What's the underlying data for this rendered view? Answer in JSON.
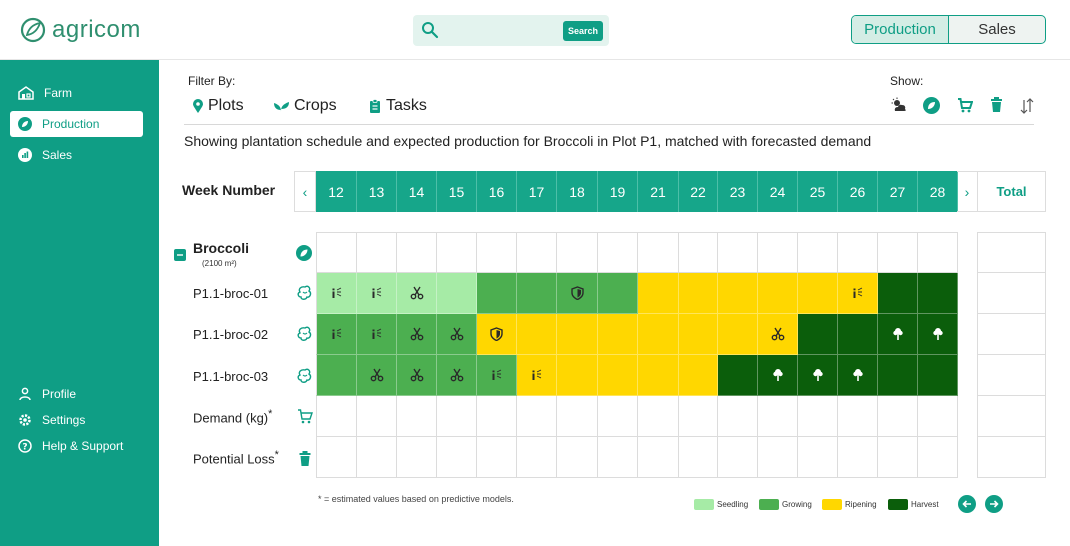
{
  "app": {
    "name": "agricom"
  },
  "search": {
    "placeholder": "",
    "button_label": "Search"
  },
  "mode_toggle": {
    "production": "Production",
    "sales": "Sales",
    "active": "Production"
  },
  "sidebar": {
    "items": [
      {
        "label": "Farm",
        "icon": "barn-icon"
      },
      {
        "label": "Production",
        "icon": "leaf-icon",
        "active": true
      },
      {
        "label": "Sales",
        "icon": "chart-icon"
      }
    ],
    "bottom_items": [
      {
        "label": "Profile",
        "icon": "user-icon"
      },
      {
        "label": "Settings",
        "icon": "gear-icon"
      },
      {
        "label": "Help & Support",
        "icon": "help-icon"
      }
    ]
  },
  "filter": {
    "label": "Filter By:",
    "items": [
      {
        "label": "Plots",
        "icon": "pin-icon"
      },
      {
        "label": "Crops",
        "icon": "sprout-icon"
      },
      {
        "label": "Tasks",
        "icon": "clipboard-icon"
      }
    ]
  },
  "show": {
    "label": "Show:",
    "icons": [
      "weather-icon",
      "leaf-icon",
      "cart-icon",
      "trash-icon",
      "sort-icon"
    ]
  },
  "description": "Showing plantation schedule and expected production for Broccoli in Plot P1, matched with forecasted demand",
  "grid": {
    "week_label": "Week Number",
    "weeks": [
      "12",
      "13",
      "14",
      "15",
      "16",
      "17",
      "18",
      "19",
      "21",
      "22",
      "23",
      "24",
      "25",
      "26",
      "27",
      "28"
    ],
    "total_label": "Total",
    "crop": {
      "name": "Broccoli",
      "area": "(2100 m²)"
    },
    "stage_colors": {
      "S": "#a6eba6",
      "G": "#4caf50",
      "R": "#ffd700",
      "H": "#0b5e0b"
    },
    "rows": [
      {
        "label": "P1.1-broc-01",
        "stages": [
          "S",
          "S",
          "S",
          "S",
          "G",
          "G",
          "G",
          "G",
          "R",
          "R",
          "R",
          "R",
          "R",
          "R",
          "H",
          "H"
        ],
        "icons": [
          "irrigate",
          "irrigate",
          "scissors",
          "",
          "",
          "",
          "shield",
          "",
          "",
          "",
          "",
          "",
          "",
          "irrigate",
          "",
          ""
        ]
      },
      {
        "label": "P1.1-broc-02",
        "stages": [
          "G",
          "G",
          "G",
          "G",
          "R",
          "R",
          "R",
          "R",
          "R",
          "R",
          "R",
          "R",
          "H",
          "H",
          "H",
          "H"
        ],
        "icons": [
          "irrigate",
          "irrigate",
          "scissors",
          "scissors",
          "shield",
          "",
          "",
          "",
          "",
          "",
          "",
          "scissors",
          "",
          "",
          "broccoli",
          "broccoli"
        ]
      },
      {
        "label": "P1.1-broc-03",
        "stages": [
          "G",
          "G",
          "G",
          "G",
          "G",
          "R",
          "R",
          "R",
          "R",
          "R",
          "H",
          "H",
          "H",
          "H",
          "H",
          "H"
        ],
        "icons": [
          "",
          "scissors",
          "scissors",
          "scissors",
          "irrigate",
          "irrigate",
          "",
          "",
          "",
          "",
          "",
          "broccoli",
          "broccoli",
          "broccoli",
          "",
          ""
        ]
      }
    ],
    "demand_label": "Demand (kg)",
    "loss_label": "Potential Loss",
    "asterisk": "*"
  },
  "footnote": "* = estimated values based on predictive models.",
  "legend": [
    {
      "label": "Seedling",
      "color": "#a6eba6"
    },
    {
      "label": "Growing",
      "color": "#4caf50"
    },
    {
      "label": "Ripening",
      "color": "#ffd700"
    },
    {
      "label": "Harvest",
      "color": "#0b5e0b"
    }
  ]
}
